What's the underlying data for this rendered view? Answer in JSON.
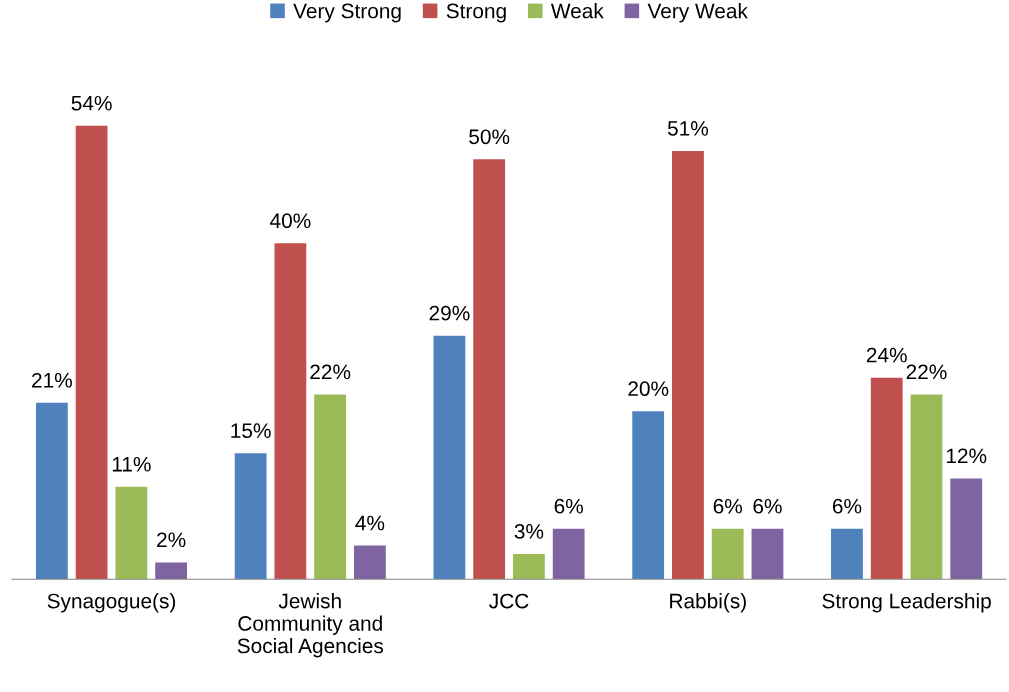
{
  "chart_data": {
    "type": "bar",
    "categories": [
      "Synagogue(s)",
      "Jewish\nCommunity and\nSocial Agencies",
      "JCC",
      "Rabbi(s)",
      "Strong Leadership"
    ],
    "series": [
      {
        "name": "Very Strong",
        "color": "#4f81bd",
        "values": [
          21,
          15,
          29,
          20,
          6
        ],
        "value_labels": [
          "21%",
          "15%",
          "29%",
          "20%",
          "6%"
        ]
      },
      {
        "name": "Strong",
        "color": "#c0504d",
        "values": [
          54,
          40,
          50,
          51,
          24
        ],
        "value_labels": [
          "54%",
          "40%",
          "50%",
          "51%",
          "24%"
        ]
      },
      {
        "name": "Weak",
        "color": "#9bbb59",
        "values": [
          11,
          22,
          3,
          6,
          22
        ],
        "value_labels": [
          "11%",
          "22%",
          "3%",
          "6%",
          "22%"
        ]
      },
      {
        "name": "Very Weak",
        "color": "#8064a2",
        "values": [
          2,
          4,
          6,
          6,
          12
        ],
        "value_labels": [
          "2%",
          "4%",
          "6%",
          "6%",
          "12%"
        ]
      }
    ],
    "tick_labels": "x",
    "legend": "top",
    "grid": false
  }
}
